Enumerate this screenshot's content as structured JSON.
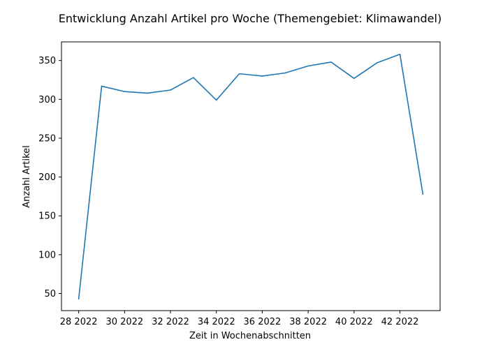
{
  "chart_data": {
    "type": "line",
    "title": "Entwicklung Anzahl Artikel pro Woche (Themengebiet: Klimawandel)",
    "xlabel": "Zeit in Wochenabschnitten",
    "ylabel": "Anzahl Artikel",
    "x": [
      "28 2022",
      "29 2022",
      "30 2022",
      "31 2022",
      "32 2022",
      "33 2022",
      "34 2022",
      "35 2022",
      "36 2022",
      "37 2022",
      "38 2022",
      "39 2022",
      "40 2022",
      "41 2022",
      "42 2022",
      "43 2022"
    ],
    "x_ticks": [
      "28 2022",
      "30 2022",
      "32 2022",
      "34 2022",
      "36 2022",
      "38 2022",
      "40 2022",
      "42 2022"
    ],
    "y_ticks": [
      50,
      100,
      150,
      200,
      250,
      300,
      350
    ],
    "ylim": [
      28,
      374
    ],
    "grid": false,
    "series": [
      {
        "values": [
          43,
          317,
          310,
          308,
          312,
          328,
          299,
          333,
          330,
          334,
          343,
          348,
          327,
          347,
          358,
          178
        ],
        "color": "#1f77b4"
      }
    ]
  }
}
